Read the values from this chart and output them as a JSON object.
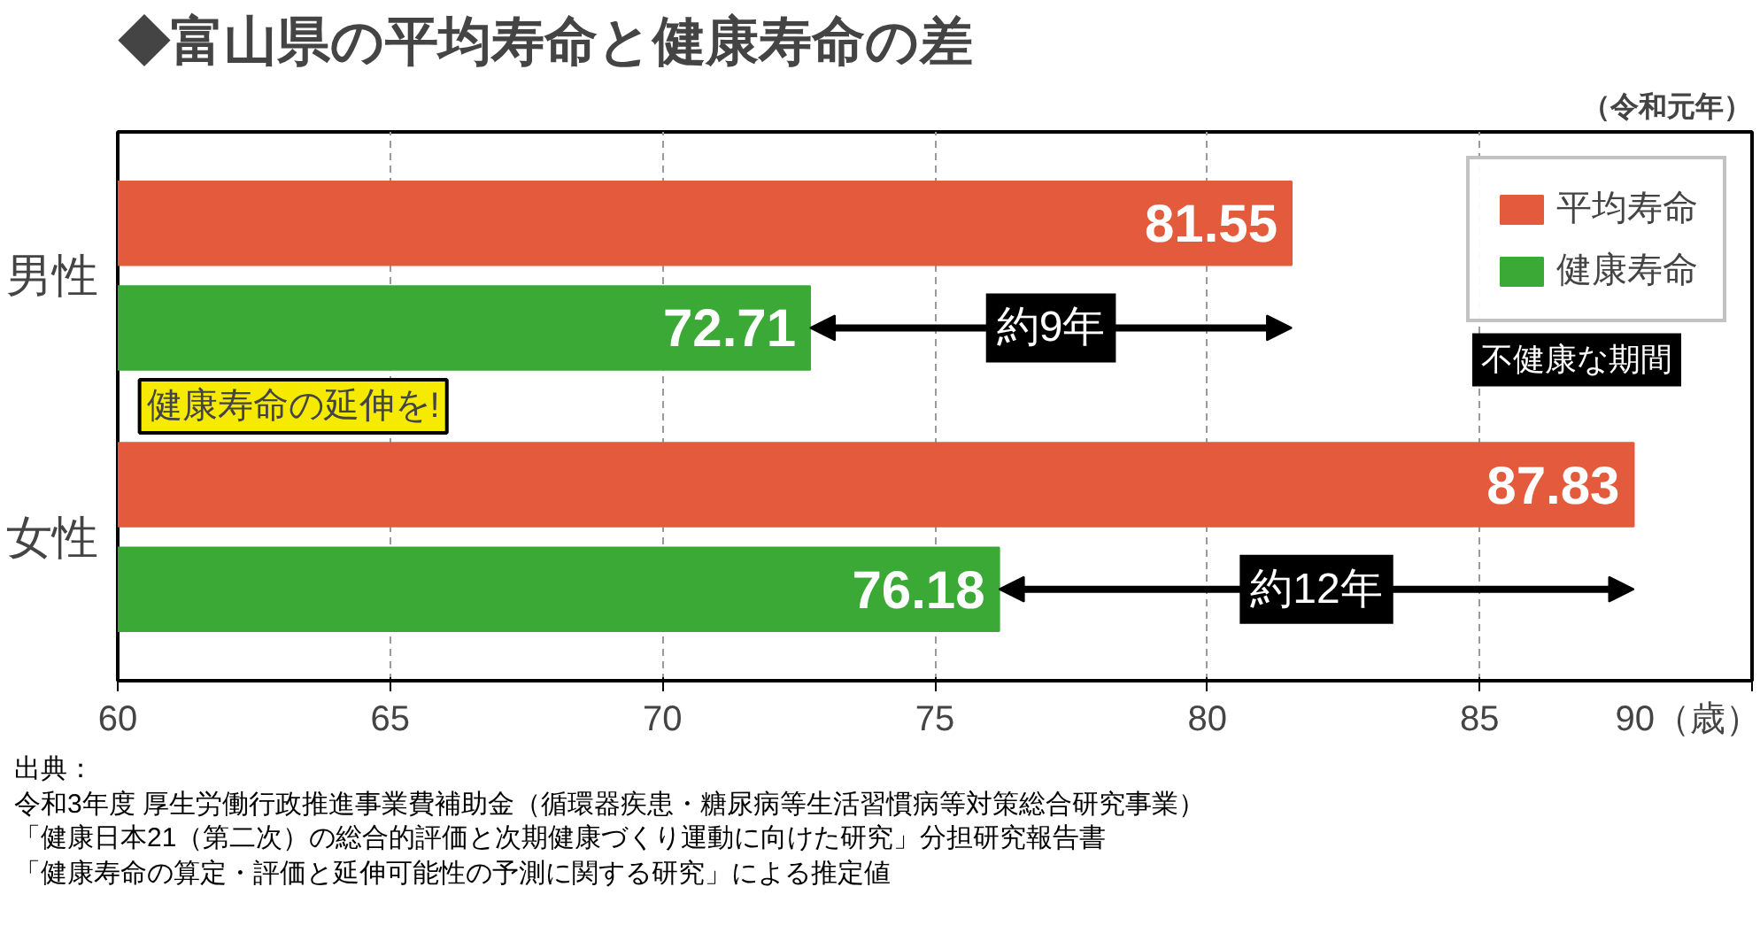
{
  "chart_data": {
    "type": "bar",
    "orientation": "horizontal",
    "title": "◆富山県の平均寿命と健康寿命の差",
    "subtitle": "（令和元年）",
    "categories": [
      "男性",
      "女性"
    ],
    "series": [
      {
        "name": "平均寿命",
        "color": "#e35a3c",
        "values": [
          81.55,
          87.83
        ]
      },
      {
        "name": "健康寿命",
        "color": "#3ba935",
        "values": [
          72.71,
          76.18
        ]
      }
    ],
    "xlim": [
      60,
      90
    ],
    "xticks": [
      60,
      65,
      70,
      75,
      80,
      85,
      {
        "value": 90,
        "label": "90（歳）"
      }
    ],
    "grid": "x",
    "legend": "top right",
    "data_labels": true,
    "annotations": [
      "約9年",
      "約12年",
      "健康寿命の延伸を!",
      "不健康な期間",
      "出典：",
      "令和3年度 厚生労働行政推進事業費補助金（循環器疾患・糖尿病等生活習慣病等対策総合研究事業）",
      "「健康日本21（第二次）の総合的評価と次期健康づくり運動に向けた研究」分担研究報告書",
      "「健康寿命の算定・評価と延伸可能性の予測に関する研究」による推定値"
    ]
  }
}
